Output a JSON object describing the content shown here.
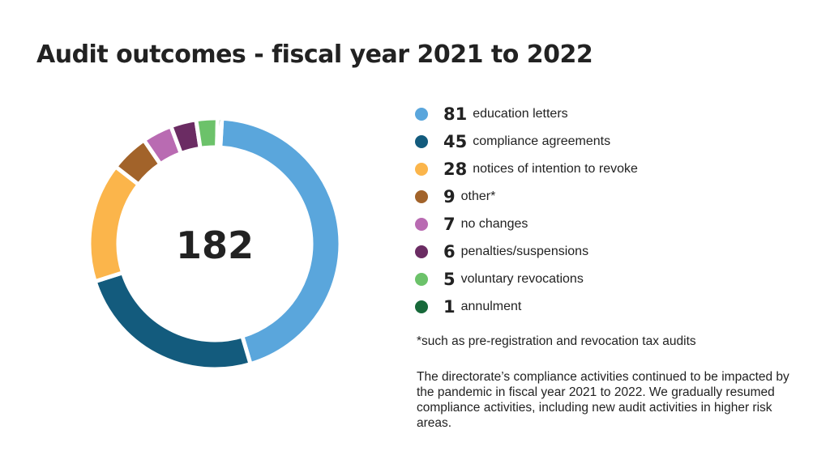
{
  "title": "Audit outcomes - fiscal year 2021 to 2022",
  "chart_data": {
    "type": "pie",
    "variant": "donut",
    "title": "Audit outcomes - fiscal year 2021 to 2022",
    "center_label": "182",
    "legend_placement": "right",
    "slices": [
      {
        "label": "education letters",
        "value": 81,
        "display_value": "81",
        "color": "#5aa6dc"
      },
      {
        "label": "compliance agreements",
        "value": 45,
        "display_value": "45",
        "color": "#135b7d"
      },
      {
        "label": "notices of intention to revoke",
        "value": 28,
        "display_value": "28",
        "color": "#fbb54b"
      },
      {
        "label": "other*",
        "value": 9,
        "display_value": "9",
        "color": "#a2632a"
      },
      {
        "label": "no changes",
        "value": 7,
        "display_value": "7",
        "color": "#b96bb2"
      },
      {
        "label": "penalties/suspensions",
        "value": 6,
        "display_value": "6",
        "color": "#6b2c63"
      },
      {
        "label": "voluntary revocations",
        "value": 5,
        "display_value": "5",
        "color": "#6cc26a"
      },
      {
        "label": "annulment",
        "value": 1,
        "display_value": "1",
        "color": "#17693a"
      }
    ]
  },
  "footnote": "*such as pre-registration and revocation tax audits",
  "note": "The directorate’s compliance activities continued to be impacted by the pandemic in fiscal year 2021 to 2022. We gradually resumed compliance activities, including new audit activities in higher risk areas."
}
